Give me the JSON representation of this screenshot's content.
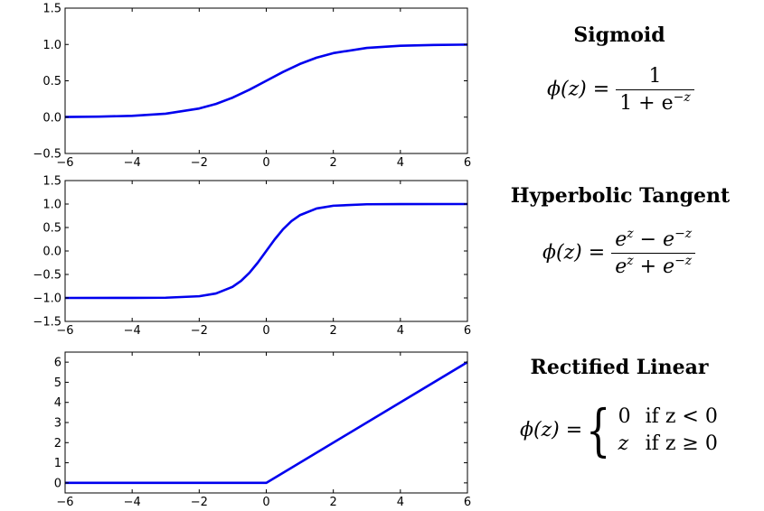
{
  "chart_data": [
    {
      "type": "line",
      "function": "sigmoid",
      "xlim": [
        -6,
        6
      ],
      "ylim": [
        -0.5,
        1.5
      ],
      "xticks": [
        -6,
        -4,
        -2,
        0,
        2,
        4,
        6
      ],
      "yticks": [
        -0.5,
        0.0,
        0.5,
        1.0,
        1.5
      ],
      "xtick_labels": [
        "−6",
        "−4",
        "−2",
        "0",
        "2",
        "4",
        "6"
      ],
      "ytick_labels": [
        "−0.5",
        "0.0",
        "0.5",
        "1.0",
        "1.5"
      ],
      "series": [
        {
          "color": "#0000ee",
          "x": [
            -6,
            -5,
            -4,
            -3,
            -2,
            -1.5,
            -1,
            -0.5,
            0,
            0.5,
            1,
            1.5,
            2,
            3,
            4,
            5,
            6
          ],
          "y": [
            0.002,
            0.007,
            0.018,
            0.047,
            0.119,
            0.182,
            0.269,
            0.378,
            0.5,
            0.622,
            0.731,
            0.818,
            0.881,
            0.953,
            0.982,
            0.993,
            0.998
          ]
        }
      ]
    },
    {
      "type": "line",
      "function": "tanh",
      "xlim": [
        -6,
        6
      ],
      "ylim": [
        -1.5,
        1.5
      ],
      "xticks": [
        -6,
        -4,
        -2,
        0,
        2,
        4,
        6
      ],
      "yticks": [
        -1.5,
        -1.0,
        -0.5,
        0.0,
        0.5,
        1.0,
        1.5
      ],
      "xtick_labels": [
        "−6",
        "−4",
        "−2",
        "0",
        "2",
        "4",
        "6"
      ],
      "ytick_labels": [
        "−1.5",
        "−1.0",
        "−0.5",
        "0.0",
        "0.5",
        "1.0",
        "1.5"
      ],
      "series": [
        {
          "color": "#0000ee",
          "x": [
            -6,
            -4,
            -3,
            -2,
            -1.5,
            -1,
            -0.75,
            -0.5,
            -0.25,
            0,
            0.25,
            0.5,
            0.75,
            1,
            1.5,
            2,
            3,
            4,
            6
          ],
          "y": [
            -1.0,
            -0.999,
            -0.995,
            -0.964,
            -0.905,
            -0.762,
            -0.635,
            -0.462,
            -0.245,
            0,
            0.245,
            0.462,
            0.635,
            0.762,
            0.905,
            0.964,
            0.995,
            0.999,
            1.0
          ]
        }
      ]
    },
    {
      "type": "line",
      "function": "relu",
      "xlim": [
        -6,
        6
      ],
      "ylim": [
        -0.5,
        6.5
      ],
      "xticks": [
        -6,
        -4,
        -2,
        0,
        2,
        4,
        6
      ],
      "yticks": [
        0,
        1,
        2,
        3,
        4,
        5,
        6
      ],
      "xtick_labels": [
        "−6",
        "−4",
        "−2",
        "0",
        "2",
        "4",
        "6"
      ],
      "ytick_labels": [
        "0",
        "1",
        "2",
        "3",
        "4",
        "5",
        "6"
      ],
      "series": [
        {
          "color": "#0000ee",
          "x": [
            -6,
            0,
            6
          ],
          "y": [
            0,
            0,
            6
          ]
        }
      ]
    }
  ],
  "panels": [
    {
      "title": "Sigmoid",
      "eq": {
        "lhs": "ϕ(z) =",
        "num": "1",
        "den_base": "1 + e",
        "den_sup": "−z"
      }
    },
    {
      "title": "Hyperbolic Tangent",
      "eq": {
        "lhs": "ϕ(z) =",
        "num_base1": "e",
        "num_sup1": "z",
        "num_mid": " − e",
        "num_sup2": "−z",
        "den_base1": "e",
        "den_sup1": "z",
        "den_mid": " + e",
        "den_sup2": "−z"
      }
    },
    {
      "title": "Rectified Linear",
      "eq": {
        "lhs": "ϕ(z) =",
        "brace": "{",
        "case1_val": "0",
        "case1_cond": "if z < 0",
        "case2_val": "z",
        "case2_cond": "if z ≥ 0"
      }
    }
  ]
}
